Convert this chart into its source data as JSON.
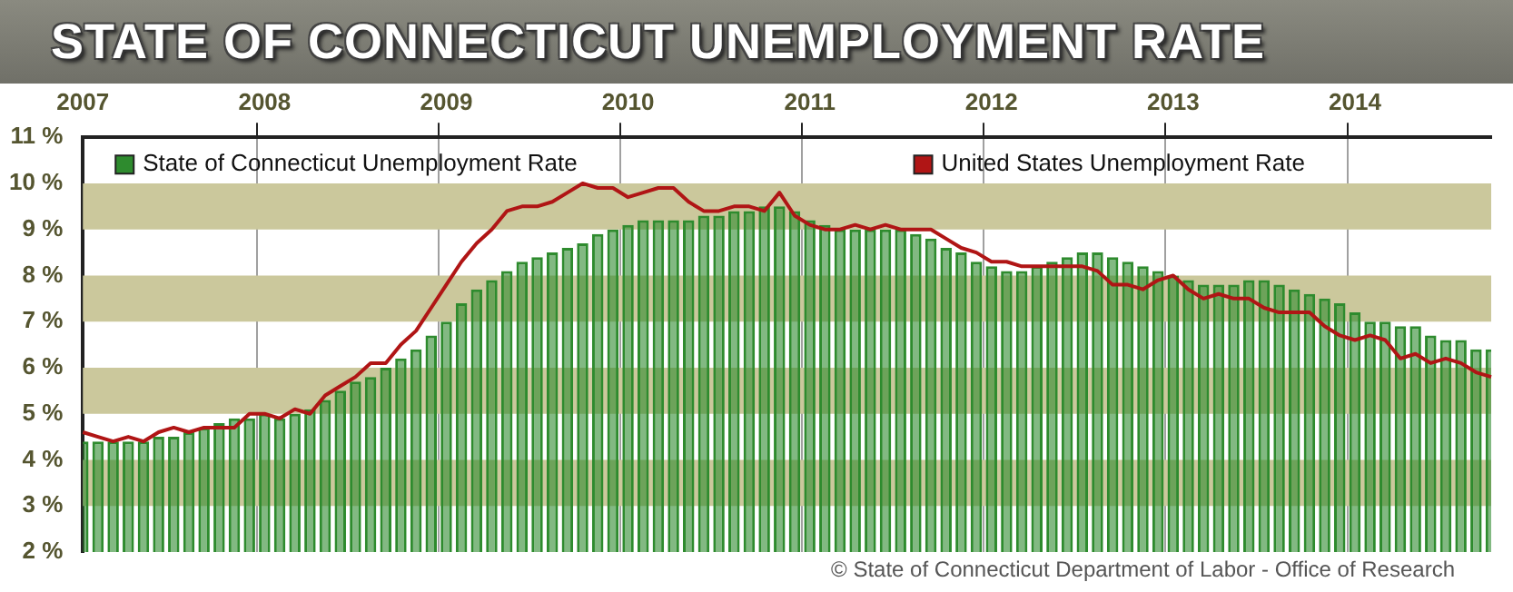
{
  "chart_data": {
    "type": "bar",
    "title": "STATE OF CONNECTICUT UNEMPLOYMENT RATE",
    "categories": [
      "2007",
      null,
      null,
      null,
      null,
      null,
      null,
      null,
      null,
      null,
      null,
      null,
      "2008",
      null,
      null,
      null,
      null,
      null,
      null,
      null,
      null,
      null,
      null,
      null,
      "2009",
      null,
      null,
      null,
      null,
      null,
      null,
      null,
      null,
      null,
      null,
      null,
      "2010",
      null,
      null,
      null,
      null,
      null,
      null,
      null,
      null,
      null,
      null,
      null,
      "2011",
      null,
      null,
      null,
      null,
      null,
      null,
      null,
      null,
      null,
      null,
      null,
      "2012",
      null,
      null,
      null,
      null,
      null,
      null,
      null,
      null,
      null,
      null,
      null,
      "2013",
      null,
      null,
      null,
      null,
      null,
      null,
      null,
      null,
      null,
      null,
      null,
      "2014",
      null,
      null,
      null,
      null,
      null,
      null,
      null,
      null,
      null
    ],
    "series": [
      {
        "name": "State of Connecticut Unemployment Rate",
        "color": "#2e8b2e",
        "values": [
          4.4,
          4.4,
          4.4,
          4.4,
          4.4,
          4.5,
          4.5,
          4.6,
          4.7,
          4.8,
          4.9,
          4.9,
          5.0,
          4.9,
          5.0,
          5.1,
          5.3,
          5.5,
          5.7,
          5.8,
          6.0,
          6.2,
          6.4,
          6.7,
          7.0,
          7.4,
          7.7,
          7.9,
          8.1,
          8.3,
          8.4,
          8.5,
          8.6,
          8.7,
          8.9,
          9.0,
          9.1,
          9.2,
          9.2,
          9.2,
          9.2,
          9.3,
          9.3,
          9.4,
          9.4,
          9.5,
          9.5,
          9.4,
          9.2,
          9.1,
          9.0,
          9.0,
          9.0,
          9.0,
          9.0,
          8.9,
          8.8,
          8.6,
          8.5,
          8.3,
          8.2,
          8.1,
          8.1,
          8.2,
          8.3,
          8.4,
          8.5,
          8.5,
          8.4,
          8.3,
          8.2,
          8.1,
          8.0,
          7.9,
          7.8,
          7.8,
          7.8,
          7.9,
          7.9,
          7.8,
          7.7,
          7.6,
          7.5,
          7.4,
          7.2,
          7.0,
          7.0,
          6.9,
          6.9,
          6.7,
          6.6,
          6.6,
          6.4,
          6.4
        ]
      },
      {
        "name": "United States Unemployment Rate",
        "type": "line",
        "color": "#b01515",
        "values": [
          4.6,
          4.5,
          4.4,
          4.5,
          4.4,
          4.6,
          4.7,
          4.6,
          4.7,
          4.7,
          4.7,
          5.0,
          5.0,
          4.9,
          5.1,
          5.0,
          5.4,
          5.6,
          5.8,
          6.1,
          6.1,
          6.5,
          6.8,
          7.3,
          7.8,
          8.3,
          8.7,
          9.0,
          9.4,
          9.5,
          9.5,
          9.6,
          9.8,
          10.0,
          9.9,
          9.9,
          9.7,
          9.8,
          9.9,
          9.9,
          9.6,
          9.4,
          9.4,
          9.5,
          9.5,
          9.4,
          9.8,
          9.3,
          9.1,
          9.0,
          9.0,
          9.1,
          9.0,
          9.1,
          9.0,
          9.0,
          9.0,
          8.8,
          8.6,
          8.5,
          8.3,
          8.3,
          8.2,
          8.2,
          8.2,
          8.2,
          8.2,
          8.1,
          7.8,
          7.8,
          7.7,
          7.9,
          8.0,
          7.7,
          7.5,
          7.6,
          7.5,
          7.5,
          7.3,
          7.2,
          7.2,
          7.2,
          6.9,
          6.7,
          6.6,
          6.7,
          6.6,
          6.2,
          6.3,
          6.1,
          6.2,
          6.1,
          5.9,
          5.8
        ]
      }
    ],
    "ylim": [
      2,
      11
    ],
    "yticks": [
      {
        "value": 2,
        "label": "2 %"
      },
      {
        "value": 3,
        "label": "3 %"
      },
      {
        "value": 4,
        "label": "4 %"
      },
      {
        "value": 5,
        "label": "5 %"
      },
      {
        "value": 6,
        "label": "6 %"
      },
      {
        "value": 7,
        "label": "7 %"
      },
      {
        "value": 8,
        "label": "8 %"
      },
      {
        "value": 9,
        "label": "9 %"
      },
      {
        "value": 10,
        "label": "10 %"
      },
      {
        "value": 11,
        "label": "11 %"
      }
    ],
    "bands": [
      {
        "axis": "y",
        "from": 3,
        "to": 4,
        "color": "#cbc89c"
      },
      {
        "axis": "y",
        "from": 5,
        "to": 6,
        "color": "#cbc89c"
      },
      {
        "axis": "y",
        "from": 7,
        "to": 8,
        "color": "#cbc89c"
      },
      {
        "axis": "y",
        "from": 9,
        "to": 10,
        "color": "#cbc89c"
      }
    ],
    "grid": true,
    "legend": "top",
    "marker": "none",
    "line_style": "solid",
    "annotations": [
      "© State of Connecticut Department of Labor - Office of Research"
    ]
  }
}
